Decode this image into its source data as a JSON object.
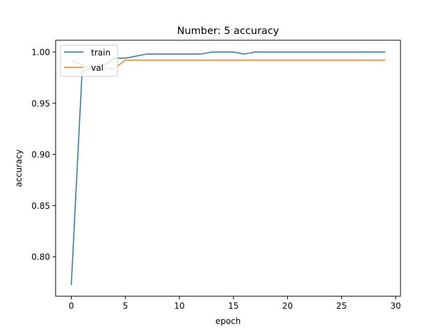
{
  "chart_data": {
    "type": "line",
    "title": "Number: 5 accuracy",
    "xlabel": "epoch",
    "ylabel": "accuracy",
    "xlim": [
      -1.45,
      30.45
    ],
    "ylim": [
      0.7615,
      1.0115
    ],
    "xticks": [
      0,
      5,
      10,
      15,
      20,
      25,
      30
    ],
    "yticks": [
      0.8,
      0.85,
      0.9,
      0.95,
      1.0
    ],
    "xtick_labels": [
      "0",
      "5",
      "10",
      "15",
      "20",
      "25",
      "30"
    ],
    "ytick_labels": [
      "0.80",
      "0.85",
      "0.90",
      "0.95",
      "1.00"
    ],
    "grid": false,
    "legend_position": "top-left",
    "x": [
      0,
      1,
      2,
      3,
      4,
      5,
      6,
      7,
      8,
      9,
      10,
      11,
      12,
      13,
      14,
      15,
      16,
      17,
      18,
      19,
      20,
      21,
      22,
      23,
      24,
      25,
      26,
      27,
      28,
      29
    ],
    "series": [
      {
        "name": "train",
        "color": "#1f77b4",
        "values": [
          0.773,
          0.981,
          0.985,
          0.987,
          0.994,
          0.994,
          0.996,
          0.998,
          0.998,
          0.998,
          0.998,
          0.998,
          0.998,
          1.0,
          1.0,
          1.0,
          0.998,
          1.0,
          1.0,
          1.0,
          1.0,
          1.0,
          1.0,
          1.0,
          1.0,
          1.0,
          1.0,
          1.0,
          1.0,
          1.0
        ]
      },
      {
        "name": "val",
        "color": "#ff7f0e",
        "values": [
          0.992,
          0.987,
          0.984,
          0.984,
          0.984,
          0.992,
          0.992,
          0.992,
          0.992,
          0.992,
          0.992,
          0.992,
          0.992,
          0.992,
          0.992,
          0.992,
          0.992,
          0.992,
          0.992,
          0.992,
          0.992,
          0.992,
          0.992,
          0.992,
          0.992,
          0.992,
          0.992,
          0.992,
          0.992,
          0.992
        ]
      }
    ]
  }
}
